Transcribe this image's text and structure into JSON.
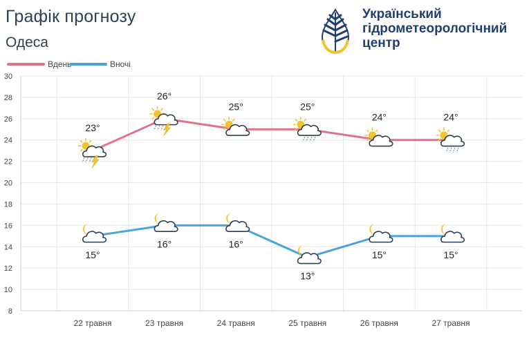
{
  "header": {
    "title": "Графік прогнозу",
    "city": "Одеса"
  },
  "logo": {
    "line1": "Український",
    "line2": "гідрометеорологічний",
    "line3": "центр",
    "icon": "water-drop-leaf-icon"
  },
  "colors": {
    "day": "#e0718a",
    "night": "#4aa3d9",
    "grid": "#e6e6e6",
    "sun": "#f2c431",
    "cloud_stroke": "#2c3e50"
  },
  "chart_data": {
    "type": "line",
    "categories": [
      "22 травня",
      "23 травня",
      "24 травня",
      "25 травня",
      "26 травня",
      "27 травня"
    ],
    "ylim": [
      8,
      30
    ],
    "yticks": [
      8,
      10,
      12,
      14,
      16,
      18,
      20,
      22,
      24,
      26,
      28,
      30
    ],
    "grid": true,
    "legend": "top-left",
    "series": [
      {
        "name": "Вдень",
        "values": [
          23,
          26,
          25,
          25,
          24,
          24
        ],
        "labels": [
          "23°",
          "26°",
          "25°",
          "25°",
          "24°",
          "24°"
        ],
        "icons": [
          "sun-cloud-thunder-rain-icon",
          "sun-cloud-thunder-rain-icon",
          "sun-cloud-icon",
          "sun-cloud-rain-icon",
          "sun-cloud-icon",
          "sun-cloud-rain-icon"
        ]
      },
      {
        "name": "Вночі",
        "values": [
          15,
          16,
          16,
          13,
          15,
          15
        ],
        "labels": [
          "15°",
          "16°",
          "16°",
          "13°",
          "15°",
          "15°"
        ],
        "icons": [
          "moon-cloud-icon",
          "moon-cloud-icon",
          "moon-cloud-icon",
          "moon-cloud-icon",
          "moon-cloud-icon",
          "moon-cloud-icon"
        ]
      }
    ]
  }
}
